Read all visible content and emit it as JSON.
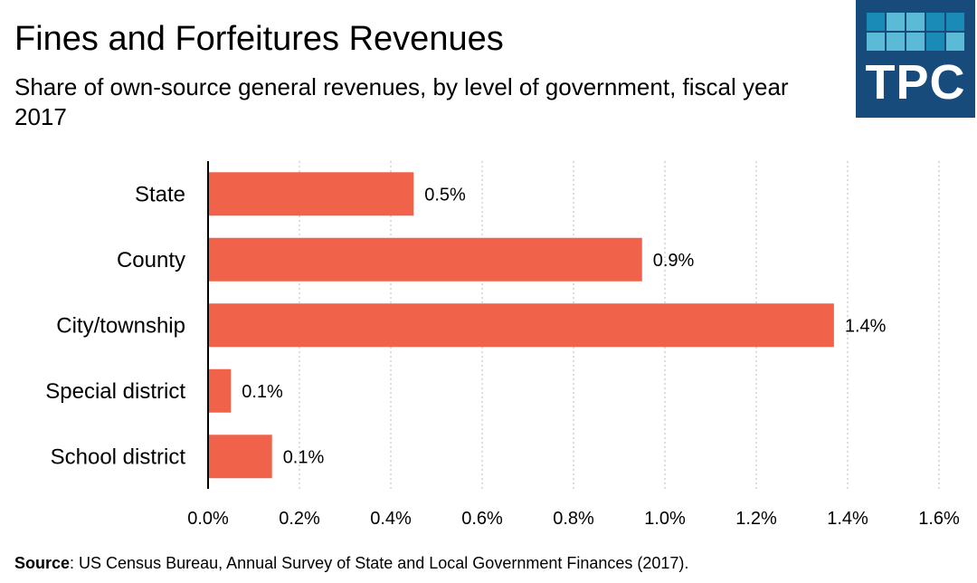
{
  "chart_data": {
    "type": "bar",
    "orientation": "horizontal",
    "title": "Fines and Forfeitures Revenues",
    "subtitle": "Share of own-source general revenues, by level of government, fiscal year 2017",
    "categories": [
      "State",
      "County",
      "City/township",
      "Special district",
      "School district"
    ],
    "values": [
      0.45,
      0.95,
      1.37,
      0.05,
      0.14
    ],
    "data_labels": [
      "0.5%",
      "0.9%",
      "1.4%",
      "0.1%",
      "0.1%"
    ],
    "xticks": [
      0,
      0.2,
      0.4,
      0.6,
      0.8,
      1.0,
      1.2,
      1.4,
      1.6
    ],
    "xtick_labels": [
      "0.0%",
      "0.2%",
      "0.4%",
      "0.6%",
      "0.8%",
      "1.0%",
      "1.2%",
      "1.4%",
      "1.6%"
    ],
    "xlim": [
      0,
      1.6
    ],
    "xlabel": "",
    "ylabel": "",
    "grid": "vertical dotted",
    "bar_color": "#f0634a"
  },
  "source_label": "Source",
  "source_text": ": US Census Bureau, Annual Survey of State and Local Government Finances (2017).",
  "logo_text": "TPC"
}
